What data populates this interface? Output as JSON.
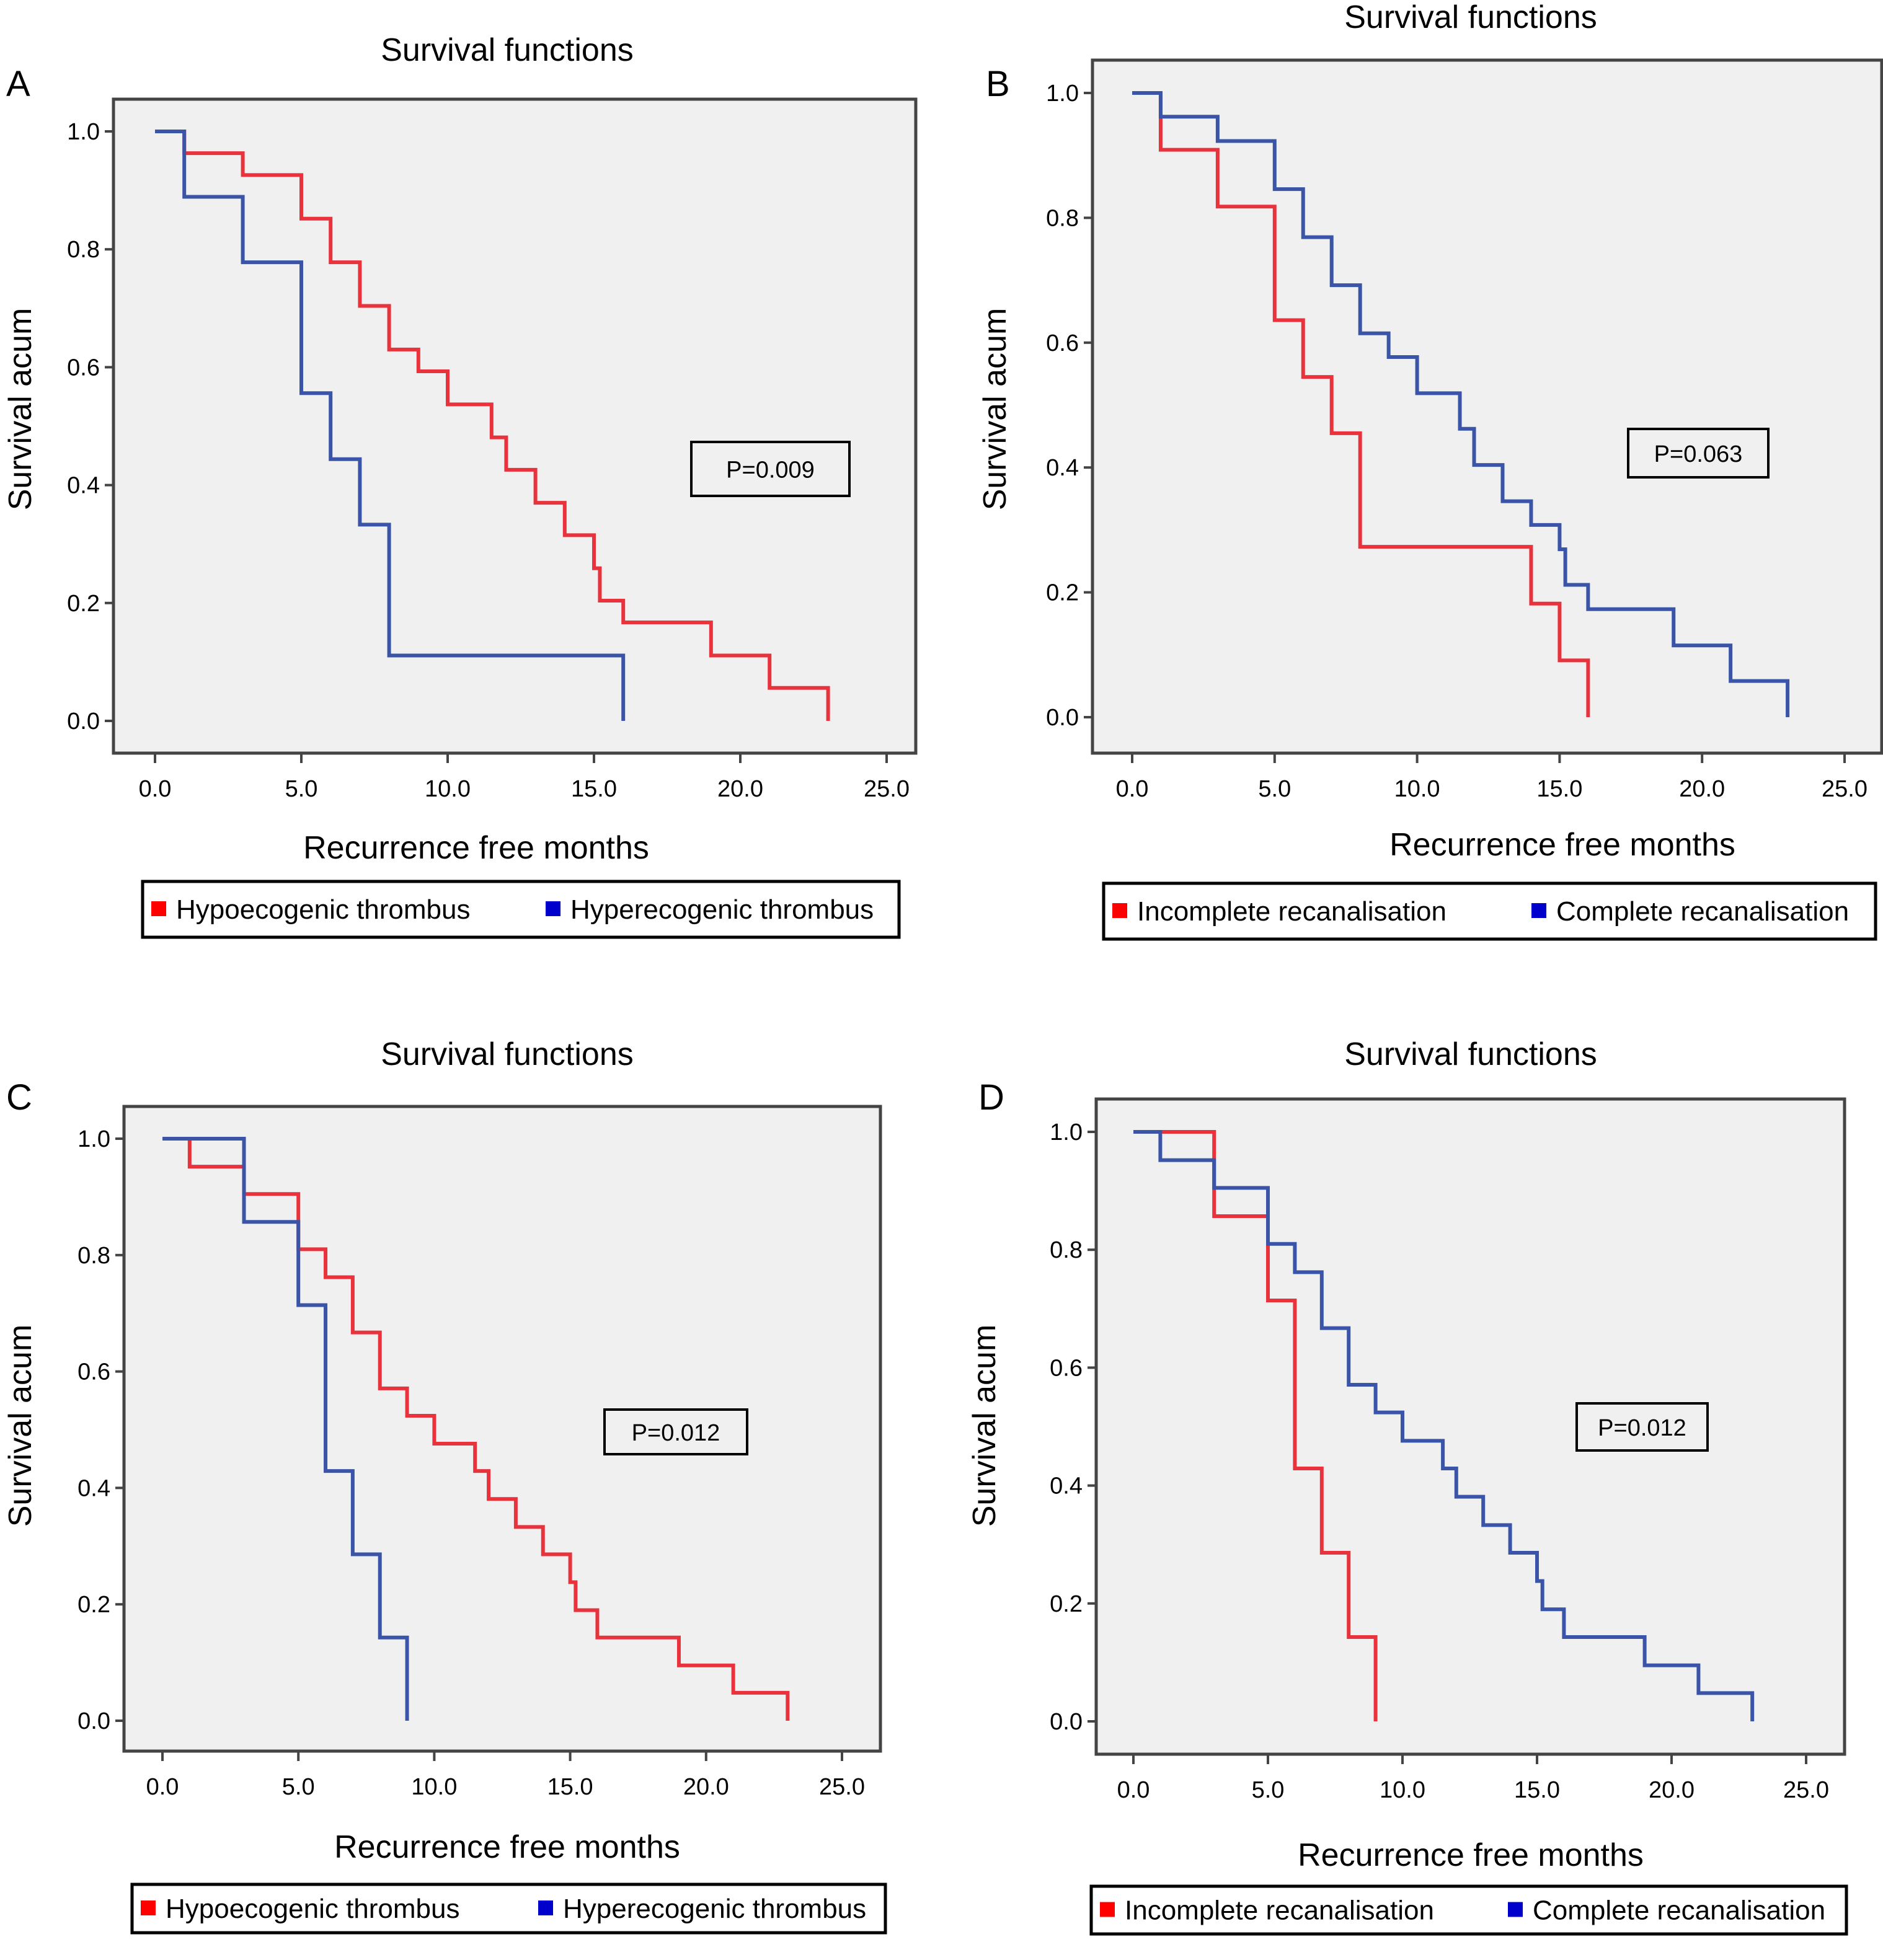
{
  "figure": {
    "panels": [
      "A",
      "B",
      "C",
      "D"
    ]
  },
  "chart_data": [
    {
      "panel": "A",
      "type": "line",
      "subtype": "kaplan-meier-step",
      "title": "Survival functions",
      "xlabel": "Recurrence free months",
      "ylabel": "Survival acum",
      "xlim": [
        0,
        25
      ],
      "ylim": [
        0,
        1
      ],
      "xticks": [
        "0.0",
        "5.0",
        "10.0",
        "15.0",
        "20.0",
        "25.0"
      ],
      "yticks": [
        "0.0",
        "0.2",
        "0.4",
        "0.6",
        "0.8",
        "1.0"
      ],
      "annotation": "P=0.009",
      "legend": {
        "placement": "bottom",
        "entries": [
          "Hypoecogenic thrombus",
          "Hyperecogenic thrombus"
        ]
      },
      "series": [
        {
          "name": "Hypoecogenic thrombus",
          "color": "#e8323c",
          "marker_color": "#ff0000",
          "x": [
            0,
            1,
            3,
            5,
            6,
            7,
            8,
            9,
            10,
            11.5,
            12,
            13,
            14,
            15,
            15.2,
            16,
            19,
            21,
            23
          ],
          "y": [
            1.0,
            0.963,
            0.926,
            0.852,
            0.778,
            0.704,
            0.63,
            0.593,
            0.537,
            0.481,
            0.426,
            0.37,
            0.315,
            0.259,
            0.204,
            0.167,
            0.111,
            0.056,
            0.0
          ]
        },
        {
          "name": "Hyperecogenic thrombus",
          "color": "#3a55a8",
          "marker_color": "#0000cc",
          "x": [
            0,
            1,
            3,
            5,
            6,
            7,
            8,
            16
          ],
          "y": [
            1.0,
            0.889,
            0.778,
            0.556,
            0.444,
            0.333,
            0.111,
            0.0
          ]
        }
      ]
    },
    {
      "panel": "B",
      "type": "line",
      "subtype": "kaplan-meier-step",
      "title": "Survival functions",
      "xlabel": "Recurrence free months",
      "ylabel": "Survival acum",
      "xlim": [
        0,
        25
      ],
      "ylim": [
        0,
        1
      ],
      "xticks": [
        "0.0",
        "5.0",
        "10.0",
        "15.0",
        "20.0",
        "25.0"
      ],
      "yticks": [
        "0.0",
        "0.2",
        "0.4",
        "0.6",
        "0.8",
        "1.0"
      ],
      "annotation": "P=0.063",
      "legend": {
        "placement": "bottom",
        "entries": [
          "Incomplete recanalisation",
          "Complete recanalisation"
        ]
      },
      "series": [
        {
          "name": "Incomplete recanalisation",
          "color": "#e8323c",
          "marker_color": "#ff0000",
          "x": [
            0,
            1,
            3,
            5,
            6,
            7,
            8,
            14,
            15,
            16
          ],
          "y": [
            1.0,
            0.909,
            0.818,
            0.636,
            0.545,
            0.455,
            0.273,
            0.182,
            0.091,
            0.0
          ]
        },
        {
          "name": "Complete recanalisation",
          "color": "#3a55a8",
          "marker_color": "#0000cc",
          "x": [
            0,
            1,
            3,
            5,
            6,
            7,
            8,
            9,
            10,
            11.5,
            12,
            13,
            14,
            15,
            15.2,
            16,
            19,
            21,
            23
          ],
          "y": [
            1.0,
            0.962,
            0.923,
            0.846,
            0.769,
            0.692,
            0.615,
            0.577,
            0.519,
            0.462,
            0.404,
            0.346,
            0.308,
            0.269,
            0.212,
            0.173,
            0.115,
            0.058,
            0.0
          ]
        }
      ]
    },
    {
      "panel": "C",
      "type": "line",
      "subtype": "kaplan-meier-step",
      "title": "Survival functions",
      "xlabel": "Recurrence free months",
      "ylabel": "Survival acum",
      "xlim": [
        0,
        25
      ],
      "ylim": [
        0,
        1
      ],
      "xticks": [
        "0.0",
        "5.0",
        "10.0",
        "15.0",
        "20.0",
        "25.0"
      ],
      "yticks": [
        "0.0",
        "0.2",
        "0.4",
        "0.6",
        "0.8",
        "1.0"
      ],
      "annotation": "P=0.012",
      "legend": {
        "placement": "bottom",
        "entries": [
          "Hypoecogenic thrombus",
          "Hyperecogenic thrombus"
        ]
      },
      "series": [
        {
          "name": "Hypoecogenic thrombus",
          "color": "#e8323c",
          "marker_color": "#ff0000",
          "x": [
            0,
            1,
            3,
            5,
            6,
            7,
            8,
            9,
            10,
            11.5,
            12,
            13,
            14,
            15,
            15.2,
            16,
            19,
            21,
            23
          ],
          "y": [
            1.0,
            0.952,
            0.905,
            0.81,
            0.762,
            0.667,
            0.571,
            0.524,
            0.476,
            0.429,
            0.381,
            0.333,
            0.286,
            0.238,
            0.19,
            0.143,
            0.095,
            0.048,
            0.0
          ]
        },
        {
          "name": "Hyperecogenic thrombus",
          "color": "#3a55a8",
          "marker_color": "#0000cc",
          "x": [
            0,
            3,
            5,
            6,
            7,
            8,
            9
          ],
          "y": [
            1.0,
            0.857,
            0.714,
            0.429,
            0.286,
            0.143,
            0.0
          ]
        }
      ]
    },
    {
      "panel": "D",
      "type": "line",
      "subtype": "kaplan-meier-step",
      "title": "Survival functions",
      "xlabel": "Recurrence free months",
      "ylabel": "Survival acum",
      "xlim": [
        0,
        25
      ],
      "ylim": [
        0,
        1
      ],
      "xticks": [
        "0.0",
        "5.0",
        "10.0",
        "15.0",
        "20.0",
        "25.0"
      ],
      "yticks": [
        "0.0",
        "0.2",
        "0.4",
        "0.6",
        "0.8",
        "1.0"
      ],
      "annotation": "P=0.012",
      "legend": {
        "placement": "bottom",
        "entries": [
          "Incomplete recanalisation",
          "Complete recanalisation"
        ]
      },
      "series": [
        {
          "name": "Incomplete recanalisation",
          "color": "#e8323c",
          "marker_color": "#ff0000",
          "x": [
            0,
            3,
            5,
            6,
            7,
            8,
            9
          ],
          "y": [
            1.0,
            0.857,
            0.714,
            0.429,
            0.286,
            0.143,
            0.0
          ]
        },
        {
          "name": "Complete recanalisation",
          "color": "#3a55a8",
          "marker_color": "#0000cc",
          "x": [
            0,
            1,
            3,
            5,
            6,
            7,
            8,
            9,
            10,
            11.5,
            12,
            13,
            14,
            15,
            15.2,
            16,
            19,
            21,
            23
          ],
          "y": [
            1.0,
            0.952,
            0.905,
            0.81,
            0.762,
            0.667,
            0.571,
            0.524,
            0.476,
            0.429,
            0.381,
            0.333,
            0.286,
            0.238,
            0.19,
            0.143,
            0.095,
            0.048,
            0.0
          ]
        }
      ]
    }
  ]
}
